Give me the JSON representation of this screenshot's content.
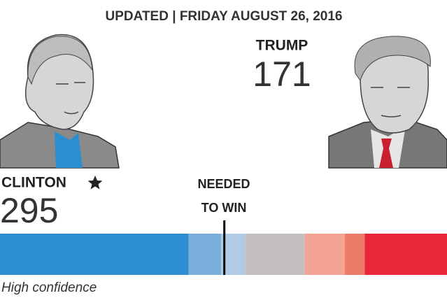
{
  "title": "UPDATED | FRIDAY AUGUST 26, 2016",
  "candidates": [
    {
      "name": "CLINTON",
      "total": 295
    },
    {
      "name": "TRUMP",
      "total": 171
    }
  ],
  "needed_label": [
    "NEEDED",
    "TO WIN"
  ],
  "footer": "High confidence",
  "chart_data": {
    "type": "stacked-bar",
    "values": [
      227,
      39,
      29,
      72,
      48,
      24,
      99
    ],
    "colors": [
      "#2b8ed0",
      "#7aaedb",
      "#afcbe8",
      "#c4c0c0",
      "#f4a493",
      "#ec7b69",
      "#e8283a"
    ],
    "xlim": [
      0,
      538
    ],
    "threshold": 270
  }
}
